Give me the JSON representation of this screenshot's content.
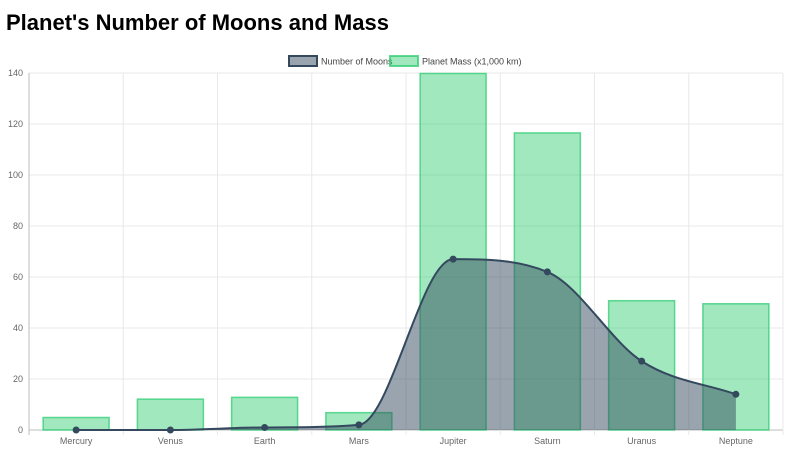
{
  "title": "Planet's Number of Moons and Mass",
  "chart_data": {
    "type": "bar",
    "categories": [
      "Mercury",
      "Venus",
      "Earth",
      "Mars",
      "Jupiter",
      "Saturn",
      "Uranus",
      "Neptune"
    ],
    "series": [
      {
        "name": "Number of Moons",
        "type": "line",
        "fill": true,
        "values": [
          0,
          0,
          1,
          2,
          67,
          62,
          27,
          14
        ],
        "color": "#34495e"
      },
      {
        "name": "Planet Mass (x1,000 km)",
        "type": "bar",
        "values": [
          4.9,
          12.1,
          12.8,
          6.8,
          139.8,
          116.5,
          50.7,
          49.5
        ],
        "color": "#2ecc71"
      }
    ],
    "ylim": [
      0,
      140
    ],
    "yticks": [
      0,
      20,
      40,
      60,
      80,
      100,
      120,
      140
    ],
    "grid": true,
    "legend": "top"
  }
}
